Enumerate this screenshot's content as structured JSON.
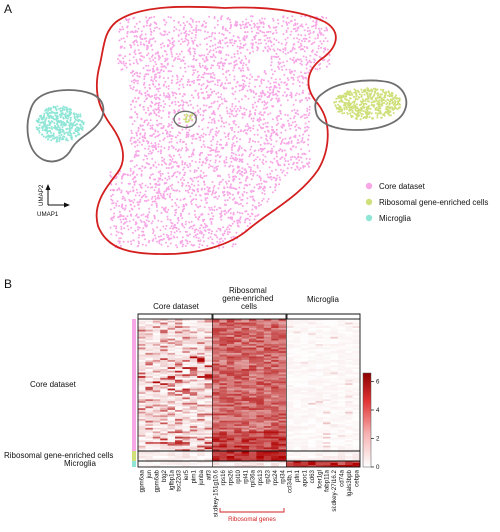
{
  "panels": {
    "a": "A",
    "b": "B"
  },
  "umap": {
    "axis_y": "UMAP2",
    "axis_x": "UMAP1",
    "legend": [
      {
        "label": "Core dataset",
        "color": "#f7a6e6"
      },
      {
        "label": "Ribosomal gene-enriched cells",
        "color": "#cfe07a"
      },
      {
        "label": "Microglia",
        "color": "#8fe6d6"
      }
    ],
    "outline_colors": {
      "core": "#d41f1f",
      "other": "#6e6e6e"
    }
  },
  "heatmap": {
    "col_groups": [
      "Core dataset",
      "Ribosomal\ngene-enriched\ncells",
      "Microglia"
    ],
    "row_groups": [
      "Core dataset",
      "Ribosomal gene-enriched cells",
      "Microglia"
    ],
    "row_group_colors": [
      "#f7a6e6",
      "#cfe07a",
      "#8fe6d6"
    ],
    "genes_core": [
      "gpm6aa",
      "jun",
      "gpm6ab",
      "btg2",
      "igfbp1a",
      "tsc22d3",
      "ier5",
      "pim1",
      "junba",
      "atf3"
    ],
    "genes_ribo": [
      "si:dkey-151g10.6",
      "rps16",
      "rps26",
      "rpl10",
      "rpl41",
      "rpl36a",
      "rps13",
      "rpl23",
      "rps24",
      "rpl34"
    ],
    "genes_micro": [
      "ccl34b.1",
      "pfn1",
      "apoc1",
      "cd63",
      "fcer1gl",
      "fabp11a",
      "si:dkey-27i16.2",
      "cd74a",
      "lgals3bpb",
      "cebpa"
    ],
    "ribosomal_genes_label": "Ribosomal genes",
    "colorbar": {
      "ticks": [
        "6",
        "4",
        "2",
        "0"
      ],
      "max": 6,
      "min": 0,
      "low": "#ffffff",
      "high": "#b00000"
    }
  }
}
